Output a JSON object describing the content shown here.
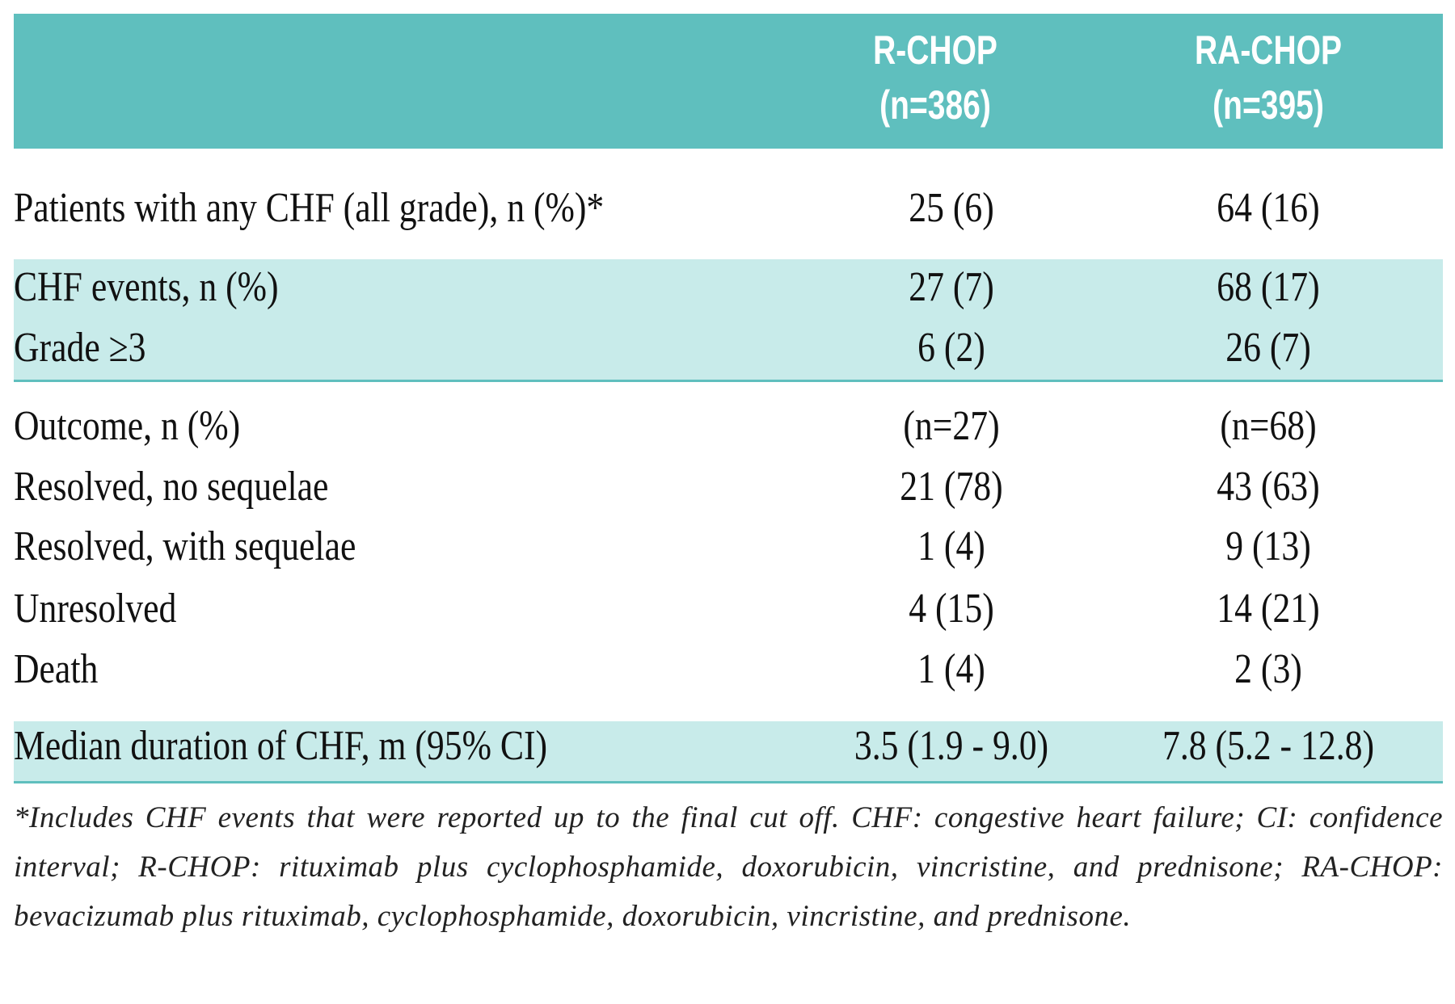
{
  "header": {
    "col1": "R-CHOP",
    "col1_n": "(n=386)",
    "col2": "RA-CHOP",
    "col2_n": "(n=395)"
  },
  "rows": [
    {
      "label": "Patients with any CHF (all grade), n (%)*",
      "rchop": "25 (6)",
      "rachop": "64 (16)"
    },
    {
      "label": "CHF events, n (%)",
      "rchop": "27 (7)",
      "rachop": "68 (17)"
    },
    {
      "label": "Grade ≥3",
      "rchop": "6 (2)",
      "rachop": "26 (7)"
    },
    {
      "label": "Outcome, n (%)",
      "rchop": "(n=27)",
      "rachop": "(n=68)"
    },
    {
      "label": "Resolved, no sequelae",
      "rchop": "21 (78)",
      "rachop": "43 (63)"
    },
    {
      "label": "Resolved, with sequelae",
      "rchop": "1 (4)",
      "rachop": "9 (13)"
    },
    {
      "label": "Unresolved",
      "rchop": "4 (15)",
      "rachop": "14 (21)"
    },
    {
      "label": "Death",
      "rchop": "1 (4)",
      "rachop": "2 (3)"
    },
    {
      "label": "Median duration of CHF, m (95% CI)",
      "rchop": "3.5 (1.9 - 9.0)",
      "rachop": "7.8 (5.2 - 12.8)"
    }
  ],
  "footnote": "*Includes CHF events that were reported up to the final cut off. CHF: congestive heart failure; CI: confidence interval; R-CHOP: rituximab plus cyclophosphamide, doxorubicin, vincristine, and prednisone; RA-CHOP: bevacizumab plus rituximab, cyclophosphamide, doxorubicin, vincristine, and prednisone.",
  "colors": {
    "header": "#5fbfbe",
    "band": "#c8ebea",
    "rule": "#5fbfbe"
  }
}
